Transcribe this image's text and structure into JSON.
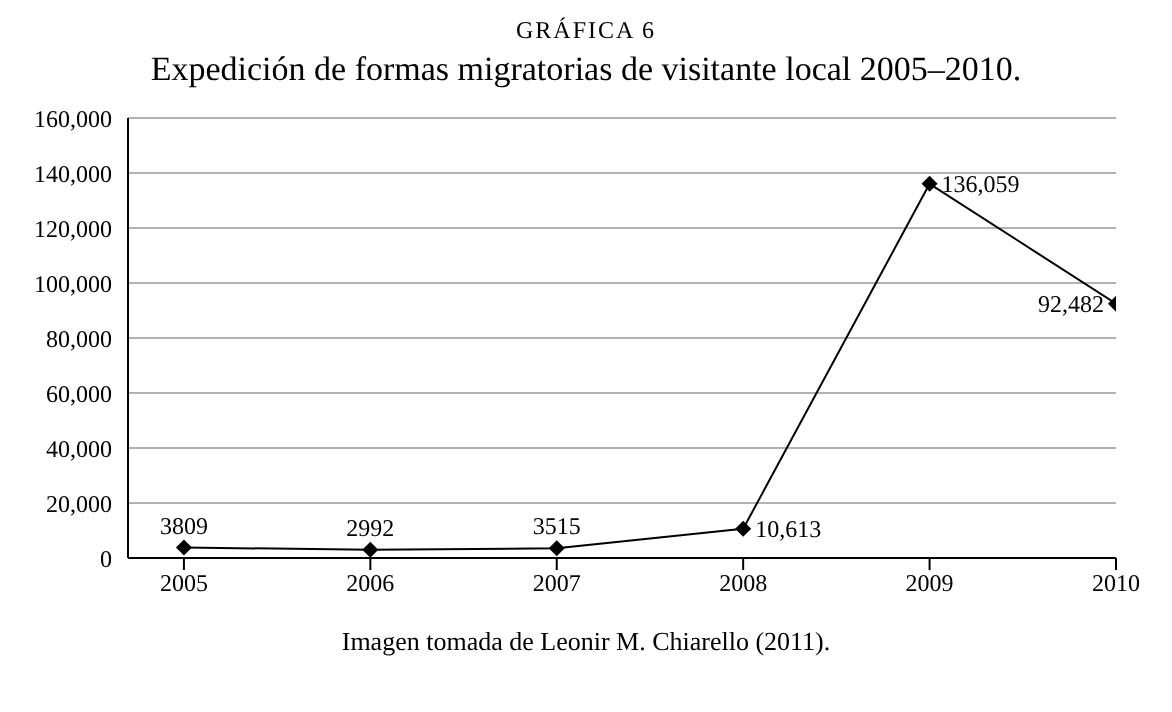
{
  "chart_data": {
    "type": "line",
    "subtitle": "GRÁFICA 6",
    "title": "Expedición de formas migratorias de visitante local 2005–2010.",
    "x": [
      2005,
      2006,
      2007,
      2008,
      2009,
      2010
    ],
    "series": [
      {
        "color": "#000000",
        "values": [
          3809,
          2992,
          3515,
          10613,
          136059,
          92482
        ]
      }
    ],
    "value_labels": [
      "3809",
      "2992",
      "3515",
      "10,613",
      "136,059",
      "92,482"
    ],
    "xlim": [
      2004.7,
      2010
    ],
    "xticks": [
      2005,
      2006,
      2007,
      2008,
      2009,
      2010
    ],
    "ylim": [
      0,
      160000
    ],
    "yticks": [
      0,
      {
        "value": 20000,
        "label": "20,000"
      },
      {
        "value": 40000,
        "label": "40,000"
      },
      {
        "value": 60000,
        "label": "60,000"
      },
      {
        "value": 80000,
        "label": "80,000"
      },
      {
        "value": 100000,
        "label": "100,000"
      },
      {
        "value": 120000,
        "label": "120,000"
      },
      {
        "value": 140000,
        "label": "140,000"
      },
      {
        "value": 160000,
        "label": "160,000"
      }
    ],
    "grid": "y",
    "marker": "diamond",
    "line_style": "solid",
    "annotations": [
      "Imagen tomada de Leonir M. Chiarello (2011)."
    ]
  }
}
